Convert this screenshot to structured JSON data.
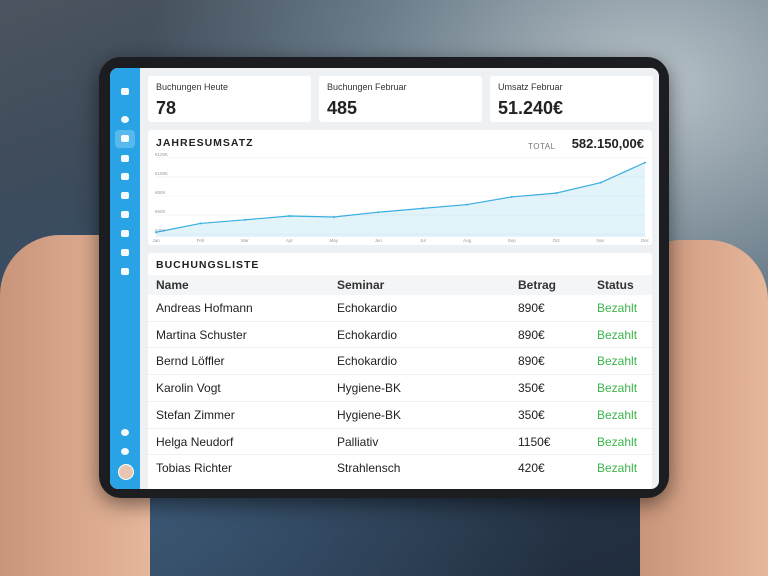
{
  "stats": [
    {
      "label": "Buchungen Heute",
      "value": "78"
    },
    {
      "label": "Buchungen Februar",
      "value": "485"
    },
    {
      "label": "Umsatz Februar",
      "value": "51.240€"
    }
  ],
  "revenue": {
    "total_label": "TOTAL",
    "total": "582.150,00€"
  },
  "chart_data": {
    "type": "area",
    "title": "JAHRESUMSATZ",
    "categories": [
      "Jan",
      "Feb",
      "Mar",
      "Apr",
      "May",
      "Jun",
      "Jul",
      "Aug",
      "Sep",
      "Oct",
      "Nov",
      "Dec"
    ],
    "values": [
      42000,
      51240,
      55000,
      59000,
      58000,
      63000,
      67000,
      71000,
      79000,
      83000,
      94000,
      115000
    ],
    "color": "#3aaee0",
    "ylim": [
      37000,
      123000
    ],
    "yticks": [
      {
        "value": 40000,
        "label": "€40K"
      },
      {
        "value": 60000,
        "label": "€60K"
      },
      {
        "value": 80000,
        "label": "€80K"
      },
      {
        "value": 100000,
        "label": "€100K"
      },
      {
        "value": 120000,
        "label": "€120K"
      }
    ],
    "grid": true
  },
  "bookings": {
    "title": "BUCHUNGSLISTE",
    "columns": [
      "Name",
      "Seminar",
      "Betrag",
      "Status"
    ],
    "rows": [
      [
        "Andreas Hofmann",
        "Echokardio",
        "890€",
        "Bezahlt"
      ],
      [
        "Martina Schuster",
        "Echokardio",
        "890€",
        "Bezahlt"
      ],
      [
        "Bernd Löffler",
        "Echokardio",
        "890€",
        "Bezahlt"
      ],
      [
        "Karolin Vogt",
        "Hygiene-BK",
        "350€",
        "Bezahlt"
      ],
      [
        "Stefan Zimmer",
        "Hygiene-BK",
        "350€",
        "Bezahlt"
      ],
      [
        "Helga Neudorf",
        "Palliativ",
        "1150€",
        "Bezahlt"
      ],
      [
        "Tobias Richter",
        "Strahlensch",
        "420€",
        "Bezahlt"
      ]
    ]
  }
}
